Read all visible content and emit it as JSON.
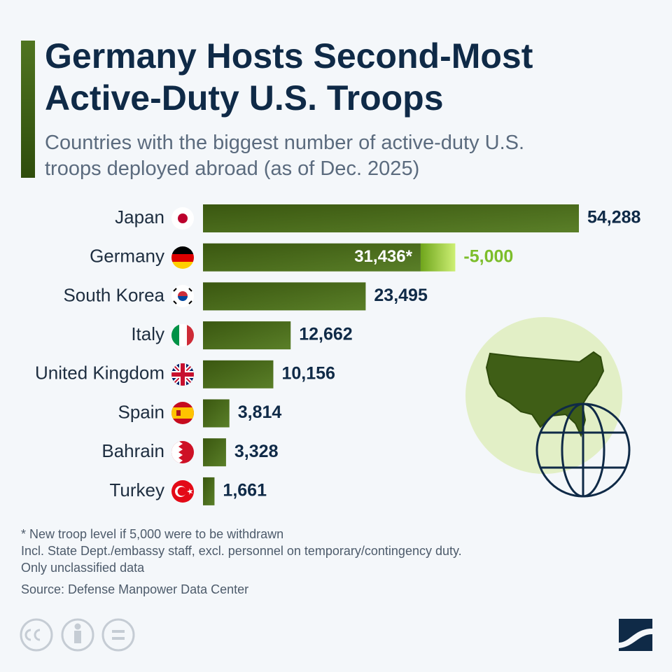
{
  "chart_data": {
    "type": "bar",
    "orientation": "horizontal",
    "title": "Germany Hosts Second-Most Active-Duty U.S. Troops",
    "subtitle": "Countries with the biggest number of active-duty U.S. troops deployed abroad (as of Dec. 2025)",
    "categories": [
      "Japan",
      "Germany",
      "South Korea",
      "Italy",
      "United Kingdom",
      "Spain",
      "Bahrain",
      "Turkey"
    ],
    "series": [
      {
        "color": "#4a6c1a",
        "values": [
          54288,
          31436,
          23495,
          12662,
          10156,
          3814,
          3328,
          1661
        ],
        "value_labels": [
          "54,288",
          "31,436*",
          "23,495",
          "12,662",
          "10,156",
          "3,814",
          "3,328",
          "1,661"
        ]
      },
      {
        "color": "#8fcc2e",
        "values": [
          null,
          -5000,
          null,
          null,
          null,
          null,
          null,
          null
        ],
        "value_labels": [
          null,
          "-5,000",
          null,
          null,
          null,
          null,
          null,
          null
        ]
      }
    ],
    "notes": [
      "* New troop level if 5,000 were to be withdrawn",
      "Incl. State Dept./embassy staff, excl. personnel on temporary/contingency duty.",
      "Only unclassified data"
    ],
    "source": "Source: Defense Manpower Data Center",
    "brand": "statista"
  }
}
